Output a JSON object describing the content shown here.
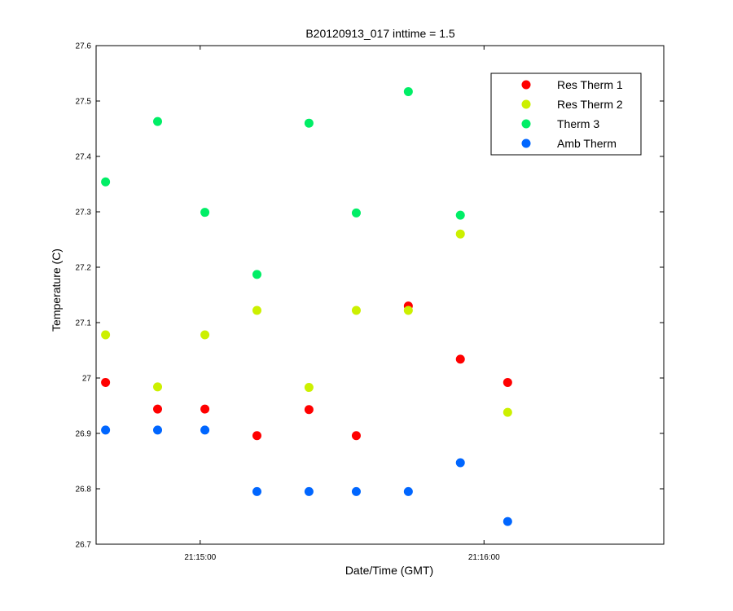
{
  "chart_data": {
    "type": "scatter",
    "title": "B20120913_017 inttime = 1.5",
    "xlabel": "Date/Time (GMT)",
    "ylabel": "Temperature (C)",
    "xlim": [
      "21:14:38",
      "21:16:38"
    ],
    "ylim": [
      26.7,
      27.6
    ],
    "x_ticks": [
      "21:15:00",
      "21:16:00"
    ],
    "y_ticks": [
      "26.7",
      "26.8",
      "26.9",
      "27",
      "27.1",
      "27.2",
      "27.3",
      "27.4",
      "27.5",
      "27.6"
    ],
    "grid": false,
    "legend": "top-right",
    "x": [
      "21:14:40",
      "21:14:51",
      "21:15:01",
      "21:15:12",
      "21:15:23",
      "21:15:33",
      "21:15:44",
      "21:15:55",
      "21:16:05"
    ],
    "series": [
      {
        "name": "Res Therm 1",
        "color": "#ff0000",
        "values": [
          26.992,
          26.944,
          26.944,
          26.896,
          26.943,
          26.896,
          27.13,
          27.034,
          26.992
        ]
      },
      {
        "name": "Res Therm 2",
        "color": "#ccf000",
        "values": [
          27.078,
          26.984,
          27.078,
          27.122,
          26.983,
          27.122,
          27.122,
          27.26,
          26.938
        ]
      },
      {
        "name": "Therm 3",
        "color": "#00ee66",
        "values": [
          27.354,
          27.463,
          27.299,
          27.187,
          27.46,
          27.298,
          27.517,
          27.294,
          null
        ]
      },
      {
        "name": "Amb Therm",
        "color": "#0066ff",
        "values": [
          26.906,
          26.906,
          26.906,
          26.795,
          26.795,
          26.795,
          26.795,
          26.847,
          26.741
        ]
      }
    ]
  }
}
